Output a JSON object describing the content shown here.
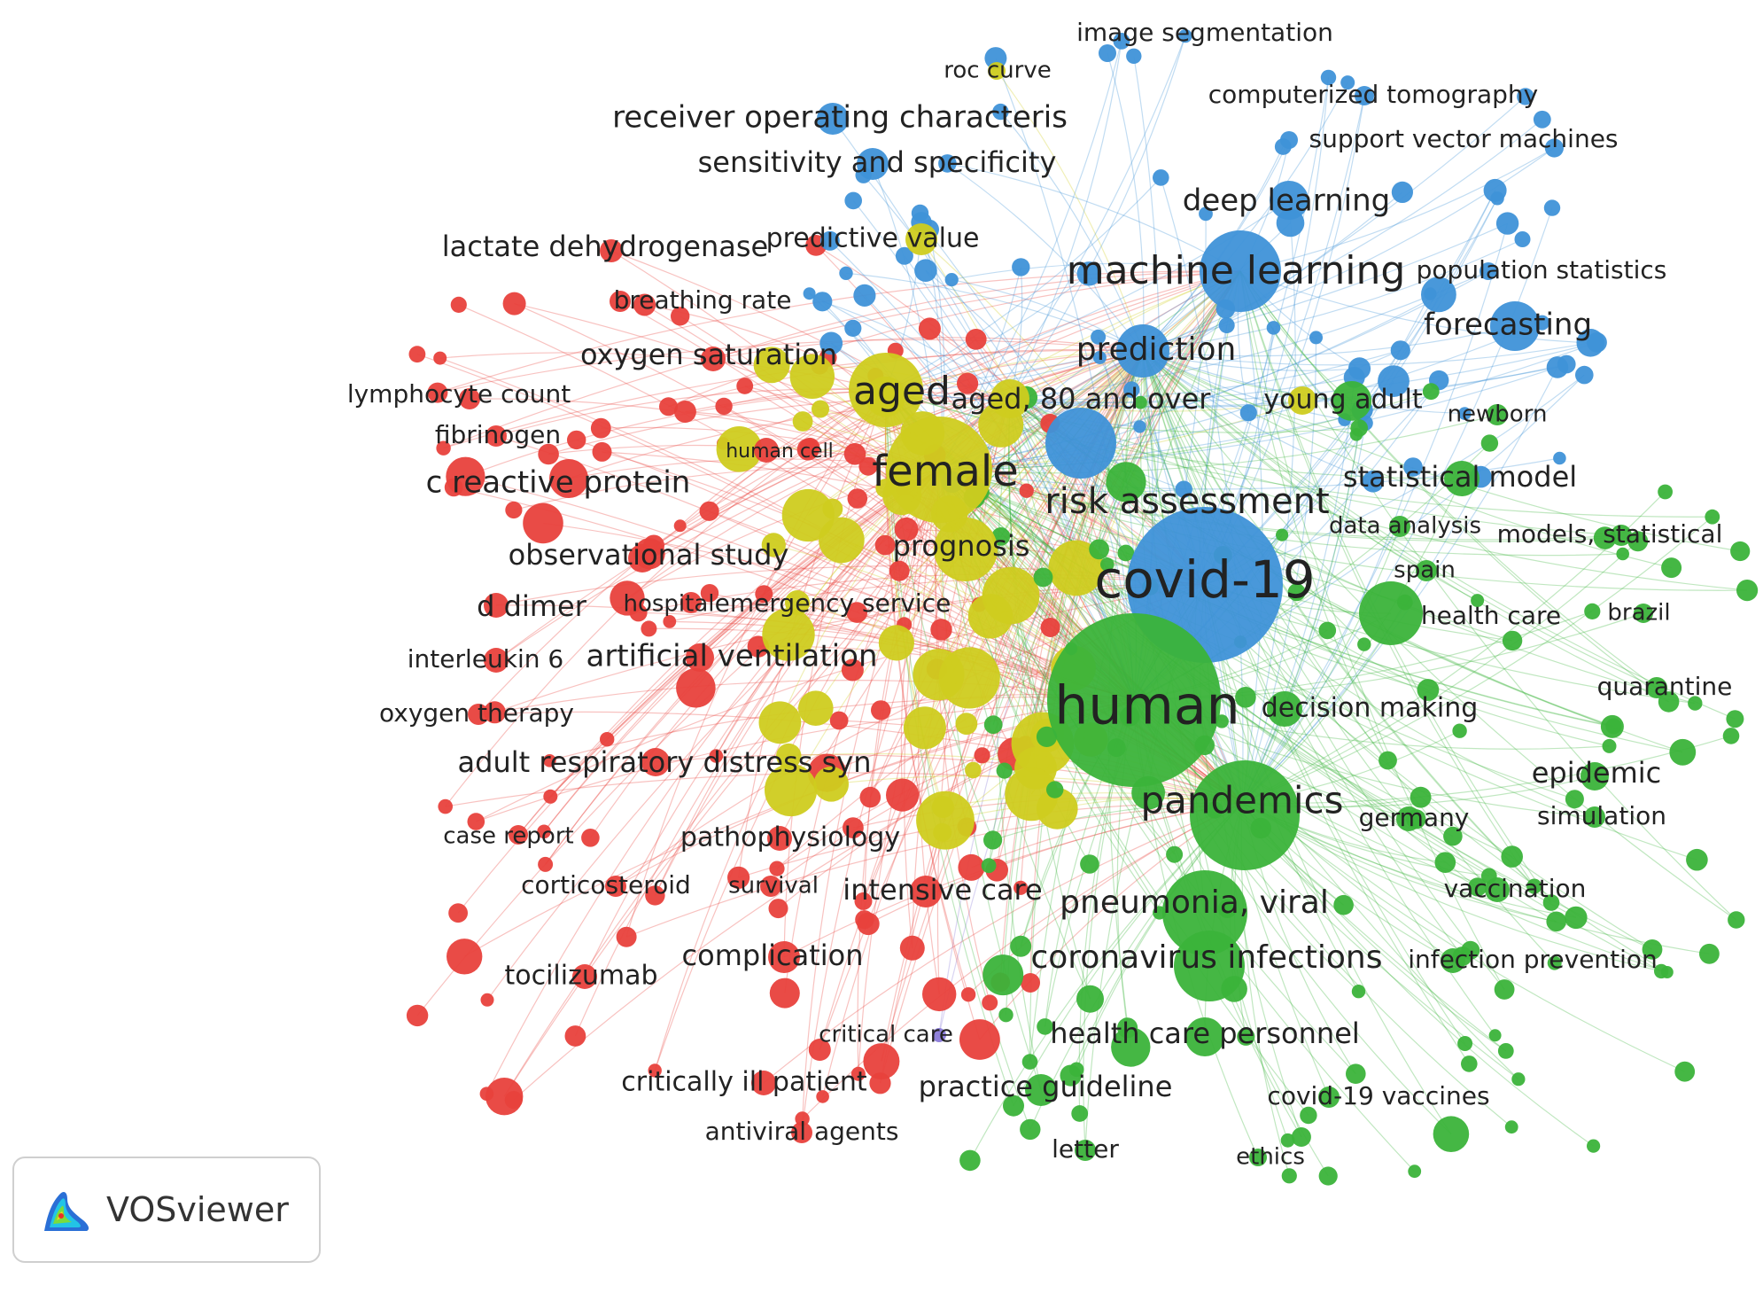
{
  "app": {
    "name": "VOSviewer",
    "logo_icon": "vosviewer-logo-icon"
  },
  "colors": {
    "red": "#e8413c",
    "yellow": "#cfcc1f",
    "blue": "#3f92d8",
    "green": "#3bb33a",
    "purple": "#8a7ad8",
    "label": "#222222"
  },
  "clusters": [
    {
      "id": "red",
      "terms": [
        "lactate dehydrogenase",
        "breathing rate",
        "oxygen saturation",
        "lymphocyte count",
        "fibrinogen",
        "human cell",
        "c reactive protein",
        "observational study",
        "d dimer",
        "hospital",
        "interleukin 6",
        "artificial ventilation",
        "oxygen therapy",
        "adult respiratory distress syn",
        "case report",
        "pathophysiology",
        "corticosteroid",
        "survival",
        "intensive care",
        "tocilizumab",
        "complication",
        "critically ill patient",
        "antiviral agents"
      ]
    },
    {
      "id": "yellow",
      "terms": [
        "roc curve",
        "predictive value",
        "aged",
        "aged, 80 and over",
        "female",
        "prognosis",
        "emergency service",
        "young adult"
      ]
    },
    {
      "id": "blue",
      "terms": [
        "image segmentation",
        "computerized tomography",
        "receiver operating characteris",
        "support vector machines",
        "sensitivity and specificity",
        "deep learning",
        "machine learning",
        "population statistics",
        "forecasting",
        "prediction",
        "risk assessment",
        "covid-19"
      ]
    },
    {
      "id": "green",
      "terms": [
        "newborn",
        "statistical model",
        "data analysis",
        "models, statistical",
        "spain",
        "health care",
        "brazil",
        "quarantine",
        "human",
        "decision making",
        "epidemic",
        "pandemics",
        "germany",
        "simulation",
        "vaccination",
        "pneumonia, viral",
        "coronavirus infections",
        "infection prevention",
        "health care personnel",
        "practice guideline",
        "covid-19 vaccines",
        "letter",
        "ethics"
      ]
    },
    {
      "id": "purple",
      "terms": [
        "critical care"
      ]
    }
  ]
}
